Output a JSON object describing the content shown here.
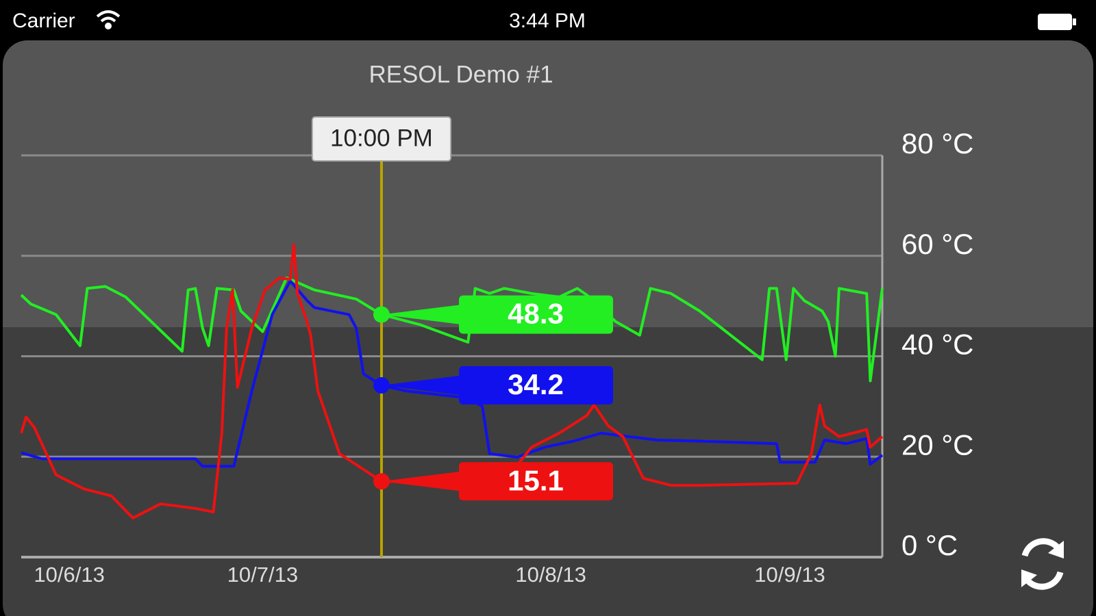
{
  "status_bar": {
    "carrier": "Carrier",
    "time": "3:44 PM"
  },
  "chart_data": {
    "type": "line",
    "title": "RESOL Demo #1",
    "xlim": [
      -8,
      63.7
    ],
    "xticks": [
      {
        "value": -4,
        "label": "10/6/13"
      },
      {
        "value": 12.1,
        "label": "10/7/13"
      },
      {
        "value": 36.1,
        "label": "10/8/13"
      },
      {
        "value": 56,
        "label": "10/9/13"
      }
    ],
    "ylim": [
      0,
      80
    ],
    "yticks": [
      {
        "value": 0,
        "label": "0 °C"
      },
      {
        "value": 20,
        "label": "20 °C"
      },
      {
        "value": 40,
        "label": "40 °C"
      },
      {
        "value": 60,
        "label": "60 °C"
      },
      {
        "value": 80,
        "label": "80 °C"
      }
    ],
    "grid": true,
    "cursor": {
      "x": 22,
      "label": "10:00 PM"
    },
    "series": [
      {
        "color": "#22ee22",
        "cursor_value": 48.3,
        "x": [
          -8,
          -7.2,
          -5.1,
          -3.1,
          -2.5,
          -1,
          0.7,
          5.4,
          5.9,
          6.5,
          7.1,
          7.6,
          8.3,
          9.7,
          10.3,
          12.1,
          14.1,
          14.7,
          16.4,
          19.9,
          22,
          25.2,
          29.2,
          29.8,
          31,
          32.2,
          34.5,
          36.8,
          38.3,
          39.1,
          41.5,
          43.5,
          44.4,
          46.1,
          48.5,
          53.7,
          54.3,
          54.9,
          55.7,
          56.3,
          57.2,
          58.7,
          59.2,
          59.8,
          60.1,
          62.4,
          62.7,
          63.7
        ],
        "values": [
          52.2,
          50.4,
          48.3,
          42.1,
          53.5,
          53.9,
          51.8,
          41,
          53.2,
          53.5,
          45.6,
          42.1,
          53.5,
          53.2,
          49,
          44.9,
          55.6,
          55,
          53.2,
          51.4,
          48.3,
          46.3,
          42.8,
          53.5,
          52.5,
          53.5,
          52.5,
          51.8,
          53.5,
          52.2,
          46.9,
          44.2,
          53.5,
          52.5,
          49,
          39.3,
          53.5,
          53.5,
          39.3,
          53.5,
          51.1,
          49,
          46.9,
          40,
          53.5,
          52.5,
          35.1,
          53.5
        ]
      },
      {
        "color": "#1111ee",
        "cursor_value": 34.2,
        "x": [
          -8,
          -6.3,
          6.5,
          7.1,
          9.7,
          11.2,
          12.9,
          14.4,
          15.8,
          16.4,
          19.3,
          19.9,
          20.5,
          22,
          24,
          29.2,
          30.4,
          31,
          33.3,
          35.6,
          38,
          40.3,
          42.6,
          45,
          48.5,
          54.9,
          55.2,
          58.1,
          58.9,
          60.7,
          62.4,
          62.7,
          63.7
        ],
        "values": [
          20.8,
          19.6,
          19.6,
          18.1,
          18.1,
          33.1,
          48.3,
          55,
          51.1,
          49.7,
          48.3,
          45.6,
          36.5,
          34.2,
          33.1,
          31.7,
          30,
          20.6,
          19.9,
          21.9,
          23.1,
          24.7,
          24,
          23.3,
          23.1,
          22.6,
          18.9,
          18.9,
          23.3,
          22.6,
          23.6,
          18.5,
          20.3
        ]
      },
      {
        "color": "#ee1111",
        "cursor_value": 15.1,
        "x": [
          -8,
          -7.6,
          -6.9,
          -5.1,
          -2.8,
          -0.5,
          1.3,
          3.6,
          6.5,
          8,
          8.7,
          9.1,
          9.6,
          10,
          11.2,
          12.3,
          13.5,
          14.4,
          14.7,
          15,
          15.8,
          16.1,
          16.7,
          18.5,
          22,
          25.2,
          29.8,
          32.2,
          34.5,
          36.8,
          39.1,
          39.7,
          40.9,
          42.1,
          43.8,
          46.1,
          48.5,
          56.6,
          57.8,
          58.5,
          58.9,
          60.1,
          62.4,
          62.7,
          63.7
        ],
        "values": [
          24.7,
          27.9,
          25.8,
          16.4,
          13.6,
          12.2,
          7.8,
          10.6,
          9.7,
          9,
          24.7,
          45.6,
          53.2,
          33.8,
          45.6,
          53.2,
          55.6,
          55.3,
          62.2,
          52.5,
          46.9,
          44.2,
          33.1,
          20.6,
          15.1,
          15,
          15,
          15,
          21.9,
          24.7,
          28.2,
          30.3,
          26.1,
          24,
          15.7,
          14.3,
          14.3,
          14.7,
          20.6,
          30.3,
          26.1,
          24,
          25.4,
          21.9,
          24
        ]
      }
    ]
  }
}
